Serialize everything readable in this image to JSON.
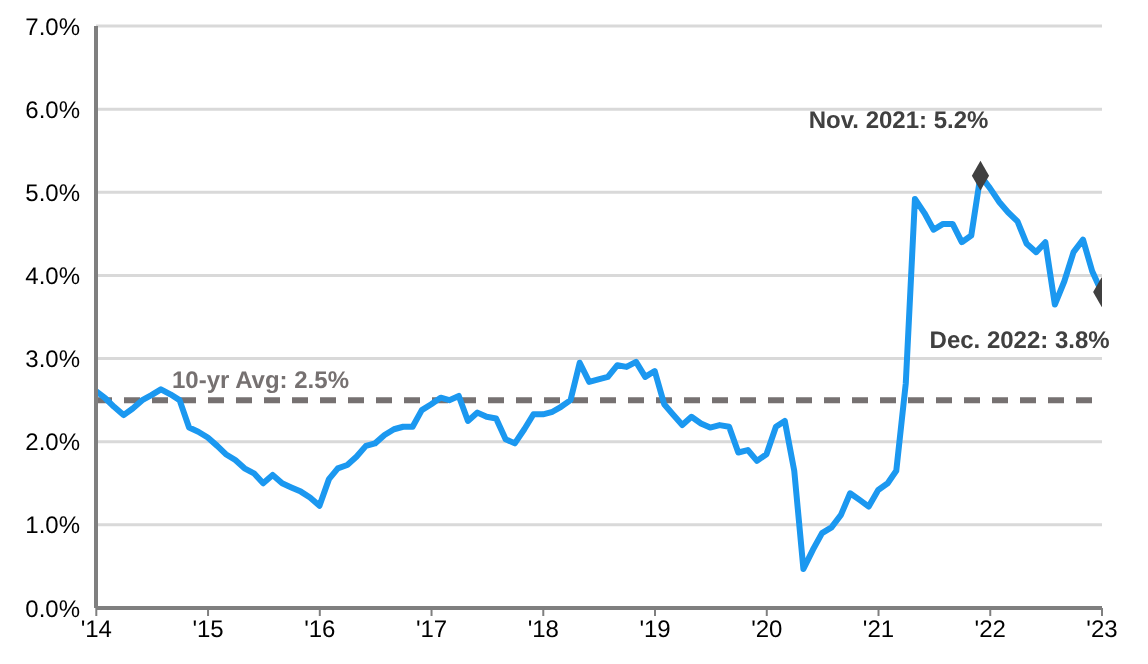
{
  "chart_data": {
    "type": "line",
    "x": [
      "2013-12-31",
      "2014-01-31",
      "2014-02-28",
      "2014-03-31",
      "2014-04-30",
      "2014-05-31",
      "2014-06-30",
      "2014-07-31",
      "2014-08-31",
      "2014-09-30",
      "2014-10-31",
      "2014-11-30",
      "2014-12-31",
      "2015-01-31",
      "2015-02-28",
      "2015-03-31",
      "2015-04-30",
      "2015-05-31",
      "2015-06-30",
      "2015-07-31",
      "2015-08-31",
      "2015-09-30",
      "2015-10-31",
      "2015-11-30",
      "2015-12-31",
      "2016-01-31",
      "2016-02-29",
      "2016-03-31",
      "2016-04-30",
      "2016-05-31",
      "2016-06-30",
      "2016-07-31",
      "2016-08-31",
      "2016-09-30",
      "2016-10-31",
      "2016-11-30",
      "2016-12-31",
      "2017-01-31",
      "2017-02-28",
      "2017-03-31",
      "2017-04-30",
      "2017-05-31",
      "2017-06-30",
      "2017-07-31",
      "2017-08-31",
      "2017-09-30",
      "2017-10-31",
      "2017-11-30",
      "2017-12-31",
      "2018-01-31",
      "2018-02-28",
      "2018-03-31",
      "2018-04-30",
      "2018-05-31",
      "2018-06-30",
      "2018-07-31",
      "2018-08-31",
      "2018-09-30",
      "2018-10-31",
      "2018-11-30",
      "2018-12-31",
      "2019-01-31",
      "2019-02-28",
      "2019-03-31",
      "2019-04-30",
      "2019-05-31",
      "2019-06-30",
      "2019-07-31",
      "2019-08-31",
      "2019-09-30",
      "2019-10-31",
      "2019-11-30",
      "2019-12-31",
      "2020-01-31",
      "2020-02-29",
      "2020-03-31",
      "2020-04-30",
      "2020-05-31",
      "2020-06-30",
      "2020-07-31",
      "2020-08-31",
      "2020-09-30",
      "2020-10-31",
      "2020-11-30",
      "2020-12-31",
      "2021-01-31",
      "2021-02-28",
      "2021-03-31",
      "2021-04-30",
      "2021-05-31",
      "2021-06-30",
      "2021-07-31",
      "2021-08-31",
      "2021-09-30",
      "2021-10-31",
      "2021-11-30",
      "2021-12-31",
      "2022-01-31",
      "2022-02-28",
      "2022-03-31",
      "2022-04-30",
      "2022-05-31",
      "2022-06-30",
      "2022-07-31",
      "2022-08-31",
      "2022-09-30",
      "2022-10-31",
      "2022-11-30",
      "2022-12-31"
    ],
    "series": [
      {
        "color": "#1b98f0",
        "values": [
          2.61,
          2.52,
          2.42,
          2.32,
          2.4,
          2.5,
          2.56,
          2.63,
          2.57,
          2.5,
          2.17,
          2.12,
          2.05,
          1.95,
          1.85,
          1.78,
          1.68,
          1.62,
          1.5,
          1.6,
          1.5,
          1.45,
          1.4,
          1.33,
          1.23,
          1.55,
          1.68,
          1.72,
          1.82,
          1.95,
          1.98,
          2.08,
          2.15,
          2.18,
          2.18,
          2.38,
          2.45,
          2.53,
          2.5,
          2.55,
          2.25,
          2.35,
          2.3,
          2.28,
          2.03,
          1.98,
          2.15,
          2.33,
          2.33,
          2.36,
          2.42,
          2.5,
          2.95,
          2.72,
          2.75,
          2.78,
          2.92,
          2.9,
          2.96,
          2.78,
          2.85,
          2.45,
          2.33,
          2.2,
          2.3,
          2.22,
          2.17,
          2.2,
          2.18,
          1.87,
          1.9,
          1.77,
          1.85,
          2.18,
          2.25,
          1.65,
          0.47,
          0.7,
          0.9,
          0.97,
          1.12,
          1.38,
          1.3,
          1.22,
          1.42,
          1.5,
          1.65,
          2.7,
          4.92,
          4.75,
          4.55,
          4.62,
          4.62,
          4.4,
          4.48,
          5.2,
          5.05,
          4.88,
          4.76,
          4.65,
          4.38,
          4.28,
          4.4,
          3.65,
          3.93,
          4.28,
          4.43,
          4.05,
          3.8
        ]
      },
      {
        "type": "scatter",
        "color": "#404040",
        "marker": "diamond",
        "x": [
          "2021-11-30",
          "2022-12-31"
        ],
        "values": [
          5.2,
          3.8
        ]
      }
    ],
    "xlim": [
      "2013-12-31",
      "2023-01-01"
    ],
    "xticks": [
      {
        "value": "2014",
        "label": "'14"
      },
      {
        "value": "2015",
        "label": "'15"
      },
      {
        "value": "2016",
        "label": "'16"
      },
      {
        "value": "2017",
        "label": "'17"
      },
      {
        "value": "2018",
        "label": "'18"
      },
      {
        "value": "2019",
        "label": "'19"
      },
      {
        "value": "2020",
        "label": "'20"
      },
      {
        "value": "2021",
        "label": "'21"
      },
      {
        "value": "2022",
        "label": "'22"
      },
      {
        "value": "2023",
        "label": "'23"
      }
    ],
    "ylim": [
      0,
      7
    ],
    "yticks": [
      {
        "value": 0,
        "label": "0.0%"
      },
      {
        "value": 1,
        "label": "1.0%"
      },
      {
        "value": 2,
        "label": "2.0%"
      },
      {
        "value": 3,
        "label": "3.0%"
      },
      {
        "value": 4,
        "label": "4.0%"
      },
      {
        "value": 5,
        "label": "5.0%"
      },
      {
        "value": 6,
        "label": "6.0%"
      },
      {
        "value": 7,
        "label": "7.0%"
      }
    ],
    "grid": "y",
    "marker": "none",
    "line_style": "solid",
    "ref_lines": [
      {
        "axis": "y",
        "value": 2.5,
        "label": "10-yr Avg: 2.5%",
        "color": "#767171",
        "line_style": "dashed"
      }
    ],
    "annotations": [
      {
        "text": "Nov. 2021: 5.2%",
        "x": "2021-11-30",
        "y": 5.2
      },
      {
        "text": "Dec. 2022: 3.8%",
        "x": "2022-12-31",
        "y": 3.8
      }
    ]
  }
}
